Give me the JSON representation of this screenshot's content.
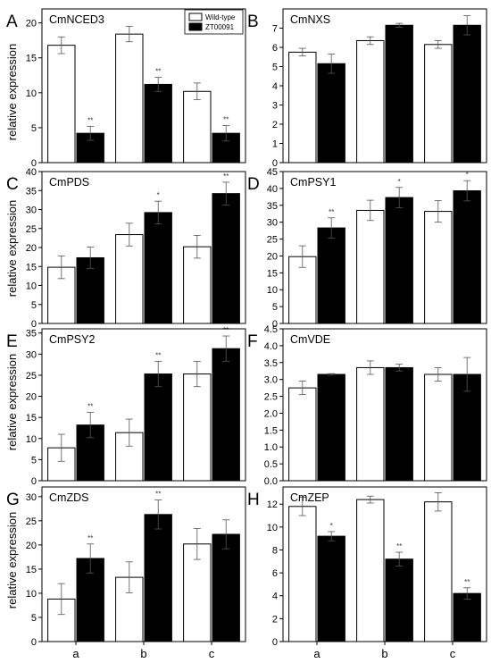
{
  "figure": {
    "ylabel": "relative expression",
    "categories": [
      "a",
      "b",
      "c"
    ],
    "legend": [
      {
        "name": "Wild-type",
        "color": "#ffffff"
      },
      {
        "name": "ZT00091",
        "color": "#000000"
      }
    ]
  },
  "chart_data": [
    {
      "type": "bar",
      "panel": "A",
      "title": "CmNCED3",
      "categories": [
        "a",
        "b",
        "c"
      ],
      "ylim": [
        0,
        22
      ],
      "yticks": [
        0,
        5,
        10,
        15,
        20
      ],
      "series": [
        {
          "name": "Wild-type",
          "values": [
            16.8,
            18.4,
            10.2
          ],
          "errors": [
            1.2,
            1.1,
            1.2
          ],
          "sig": [
            "",
            "",
            ""
          ]
        },
        {
          "name": "ZT00091",
          "values": [
            4.2,
            11.2,
            4.2
          ],
          "errors": [
            1.0,
            1.0,
            1.1
          ],
          "sig": [
            "**",
            "**",
            "**"
          ]
        }
      ],
      "legend": "top-right"
    },
    {
      "type": "bar",
      "panel": "B",
      "title": "CmNXS",
      "categories": [
        "a",
        "b",
        "c"
      ],
      "ylim": [
        0,
        8
      ],
      "yticks": [
        0,
        1,
        2,
        3,
        4,
        5,
        6,
        7
      ],
      "series": [
        {
          "name": "Wild-type",
          "values": [
            5.75,
            6.35,
            6.15
          ],
          "errors": [
            0.2,
            0.2,
            0.2
          ],
          "sig": [
            "",
            "",
            ""
          ]
        },
        {
          "name": "ZT00091",
          "values": [
            5.15,
            7.15,
            7.15
          ],
          "errors": [
            0.5,
            0.1,
            0.5
          ],
          "sig": [
            "",
            "",
            ""
          ]
        }
      ]
    },
    {
      "type": "bar",
      "panel": "C",
      "title": "CmPDS",
      "categories": [
        "a",
        "b",
        "c"
      ],
      "ylim": [
        0,
        40
      ],
      "yticks": [
        0,
        5,
        10,
        15,
        20,
        25,
        30,
        35,
        40
      ],
      "series": [
        {
          "name": "Wild-type",
          "values": [
            14.8,
            23.4,
            20.2
          ],
          "errors": [
            3.0,
            3.0,
            3.0
          ],
          "sig": [
            "",
            "",
            ""
          ]
        },
        {
          "name": "ZT00091",
          "values": [
            17.3,
            29.2,
            34.2
          ],
          "errors": [
            2.8,
            3.0,
            3.0
          ],
          "sig": [
            "",
            "*",
            "**"
          ]
        }
      ]
    },
    {
      "type": "bar",
      "panel": "D",
      "title": "CmPSY1",
      "categories": [
        "a",
        "b",
        "c"
      ],
      "ylim": [
        0,
        45
      ],
      "yticks": [
        0,
        5,
        10,
        15,
        20,
        25,
        30,
        35,
        40,
        45
      ],
      "series": [
        {
          "name": "Wild-type",
          "values": [
            19.8,
            33.5,
            33.2
          ],
          "errors": [
            3.2,
            3.0,
            3.2
          ],
          "sig": [
            "",
            "",
            ""
          ]
        },
        {
          "name": "ZT00091",
          "values": [
            28.3,
            37.3,
            39.3
          ],
          "errors": [
            3.0,
            3.0,
            3.0
          ],
          "sig": [
            "**",
            "*",
            "*"
          ]
        }
      ]
    },
    {
      "type": "bar",
      "panel": "E",
      "title": "CmPSY2",
      "categories": [
        "a",
        "b",
        "c"
      ],
      "ylim": [
        0,
        36
      ],
      "yticks": [
        0,
        5,
        10,
        15,
        20,
        25,
        30,
        35
      ],
      "series": [
        {
          "name": "Wild-type",
          "values": [
            7.8,
            11.4,
            25.3
          ],
          "errors": [
            3.2,
            3.2,
            3.0
          ],
          "sig": [
            "",
            "",
            ""
          ]
        },
        {
          "name": "ZT00091",
          "values": [
            13.2,
            25.3,
            31.3
          ],
          "errors": [
            3.0,
            3.0,
            3.0
          ],
          "sig": [
            "**",
            "**",
            "**"
          ]
        }
      ]
    },
    {
      "type": "bar",
      "panel": "F",
      "title": "CmVDE",
      "categories": [
        "a",
        "b",
        "c"
      ],
      "ylim": [
        0,
        4.5
      ],
      "yticks": [
        0,
        0.5,
        1.0,
        1.5,
        2.0,
        2.5,
        3.0,
        3.5,
        4.0,
        4.5
      ],
      "series": [
        {
          "name": "Wild-type",
          "values": [
            2.75,
            3.35,
            3.15
          ],
          "errors": [
            0.2,
            0.2,
            0.2
          ],
          "sig": [
            "",
            "",
            ""
          ]
        },
        {
          "name": "ZT00091",
          "values": [
            3.15,
            3.35,
            3.15
          ],
          "errors": [
            0.02,
            0.1,
            0.5
          ],
          "sig": [
            "",
            "",
            ""
          ]
        }
      ]
    },
    {
      "type": "bar",
      "panel": "G",
      "title": "CmZDS",
      "categories": [
        "a",
        "b",
        "c"
      ],
      "ylim": [
        0,
        32
      ],
      "yticks": [
        0,
        5,
        10,
        15,
        20,
        25,
        30
      ],
      "series": [
        {
          "name": "Wild-type",
          "values": [
            8.8,
            13.3,
            20.2
          ],
          "errors": [
            3.2,
            3.2,
            3.2
          ],
          "sig": [
            "",
            "",
            ""
          ]
        },
        {
          "name": "ZT00091",
          "values": [
            17.2,
            26.3,
            22.2
          ],
          "errors": [
            3.0,
            3.0,
            3.0
          ],
          "sig": [
            "**",
            "**",
            ""
          ]
        }
      ]
    },
    {
      "type": "bar",
      "panel": "H",
      "title": "CmZEP",
      "categories": [
        "a",
        "b",
        "c"
      ],
      "ylim": [
        0,
        13.5
      ],
      "yticks": [
        0,
        2,
        4,
        6,
        8,
        10,
        12
      ],
      "series": [
        {
          "name": "Wild-type",
          "values": [
            11.8,
            12.4,
            12.2
          ],
          "errors": [
            0.8,
            0.3,
            0.8
          ],
          "sig": [
            "",
            "",
            ""
          ]
        },
        {
          "name": "ZT00091",
          "values": [
            9.2,
            7.2,
            4.2
          ],
          "errors": [
            0.4,
            0.6,
            0.5
          ],
          "sig": [
            "*",
            "**",
            "**"
          ]
        }
      ]
    }
  ]
}
